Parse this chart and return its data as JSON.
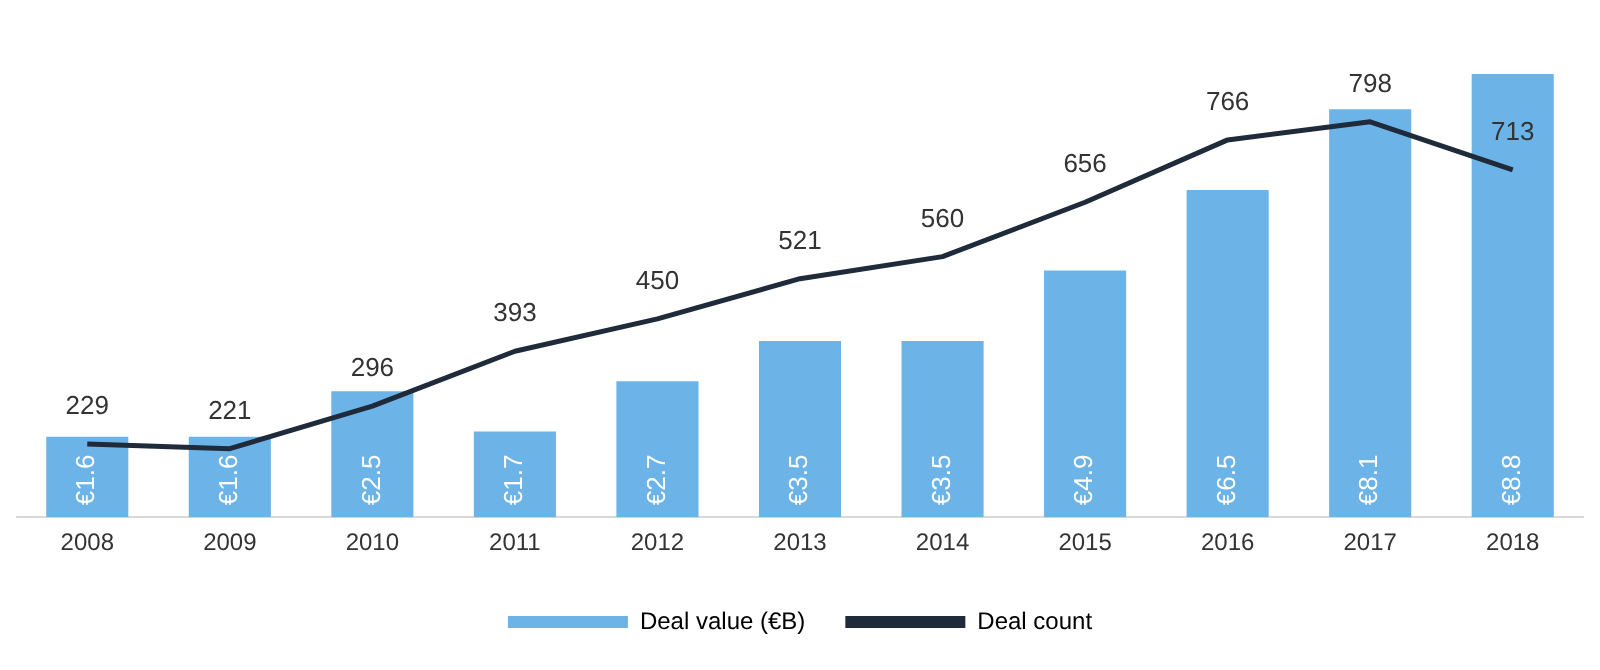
{
  "chart_data": {
    "type": "bar",
    "categories": [
      "2008",
      "2009",
      "2010",
      "2011",
      "2012",
      "2013",
      "2014",
      "2015",
      "2016",
      "2017",
      "2018"
    ],
    "series": [
      {
        "name": "Deal value (€B)",
        "color": "#6cb4e8",
        "values": [
          1.6,
          1.6,
          2.5,
          1.7,
          2.7,
          3.5,
          3.5,
          4.9,
          6.5,
          8.1,
          8.8
        ],
        "value_labels": [
          "€1.6",
          "€1.6",
          "€2.5",
          "€1.7",
          "€2.7",
          "€3.5",
          "€3.5",
          "€4.9",
          "€6.5",
          "€8.1",
          "€8.8"
        ]
      },
      {
        "name": "Deal count",
        "type": "line",
        "axis": "y2",
        "color": "#1f2b3a",
        "values": [
          229,
          221,
          296,
          393,
          450,
          521,
          560,
          656,
          766,
          798,
          713
        ],
        "value_labels": [
          "229",
          "221",
          "296",
          "393",
          "450",
          "521",
          "560",
          "656",
          "766",
          "798",
          "713"
        ]
      }
    ],
    "tick_labels": "x",
    "grid": false,
    "legend": "bottom",
    "marker": "none"
  }
}
